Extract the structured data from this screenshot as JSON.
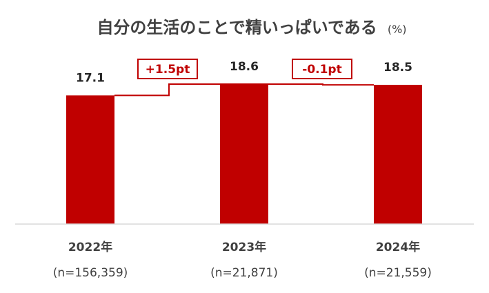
{
  "chart_data": {
    "type": "bar",
    "title": "自分の生活のことで精いっぱいである",
    "unit": "(%)",
    "categories": [
      "2022年",
      "2023年",
      "2024年"
    ],
    "sample_sizes": [
      "(n=156,359)",
      "(n=21,871)",
      "(n=21,559)"
    ],
    "values": [
      17.1,
      18.6,
      18.5
    ],
    "data_labels": [
      "17.1",
      "18.6",
      "18.5"
    ],
    "differences": [
      "+1.5pt",
      "-0.1pt"
    ],
    "ylim": [
      0,
      18.6
    ],
    "grid": false,
    "legend": "none"
  },
  "colors": {
    "bar": "#C00000",
    "step_line": "#C00000",
    "axis": "#D9D9D9",
    "text": "#404040"
  }
}
